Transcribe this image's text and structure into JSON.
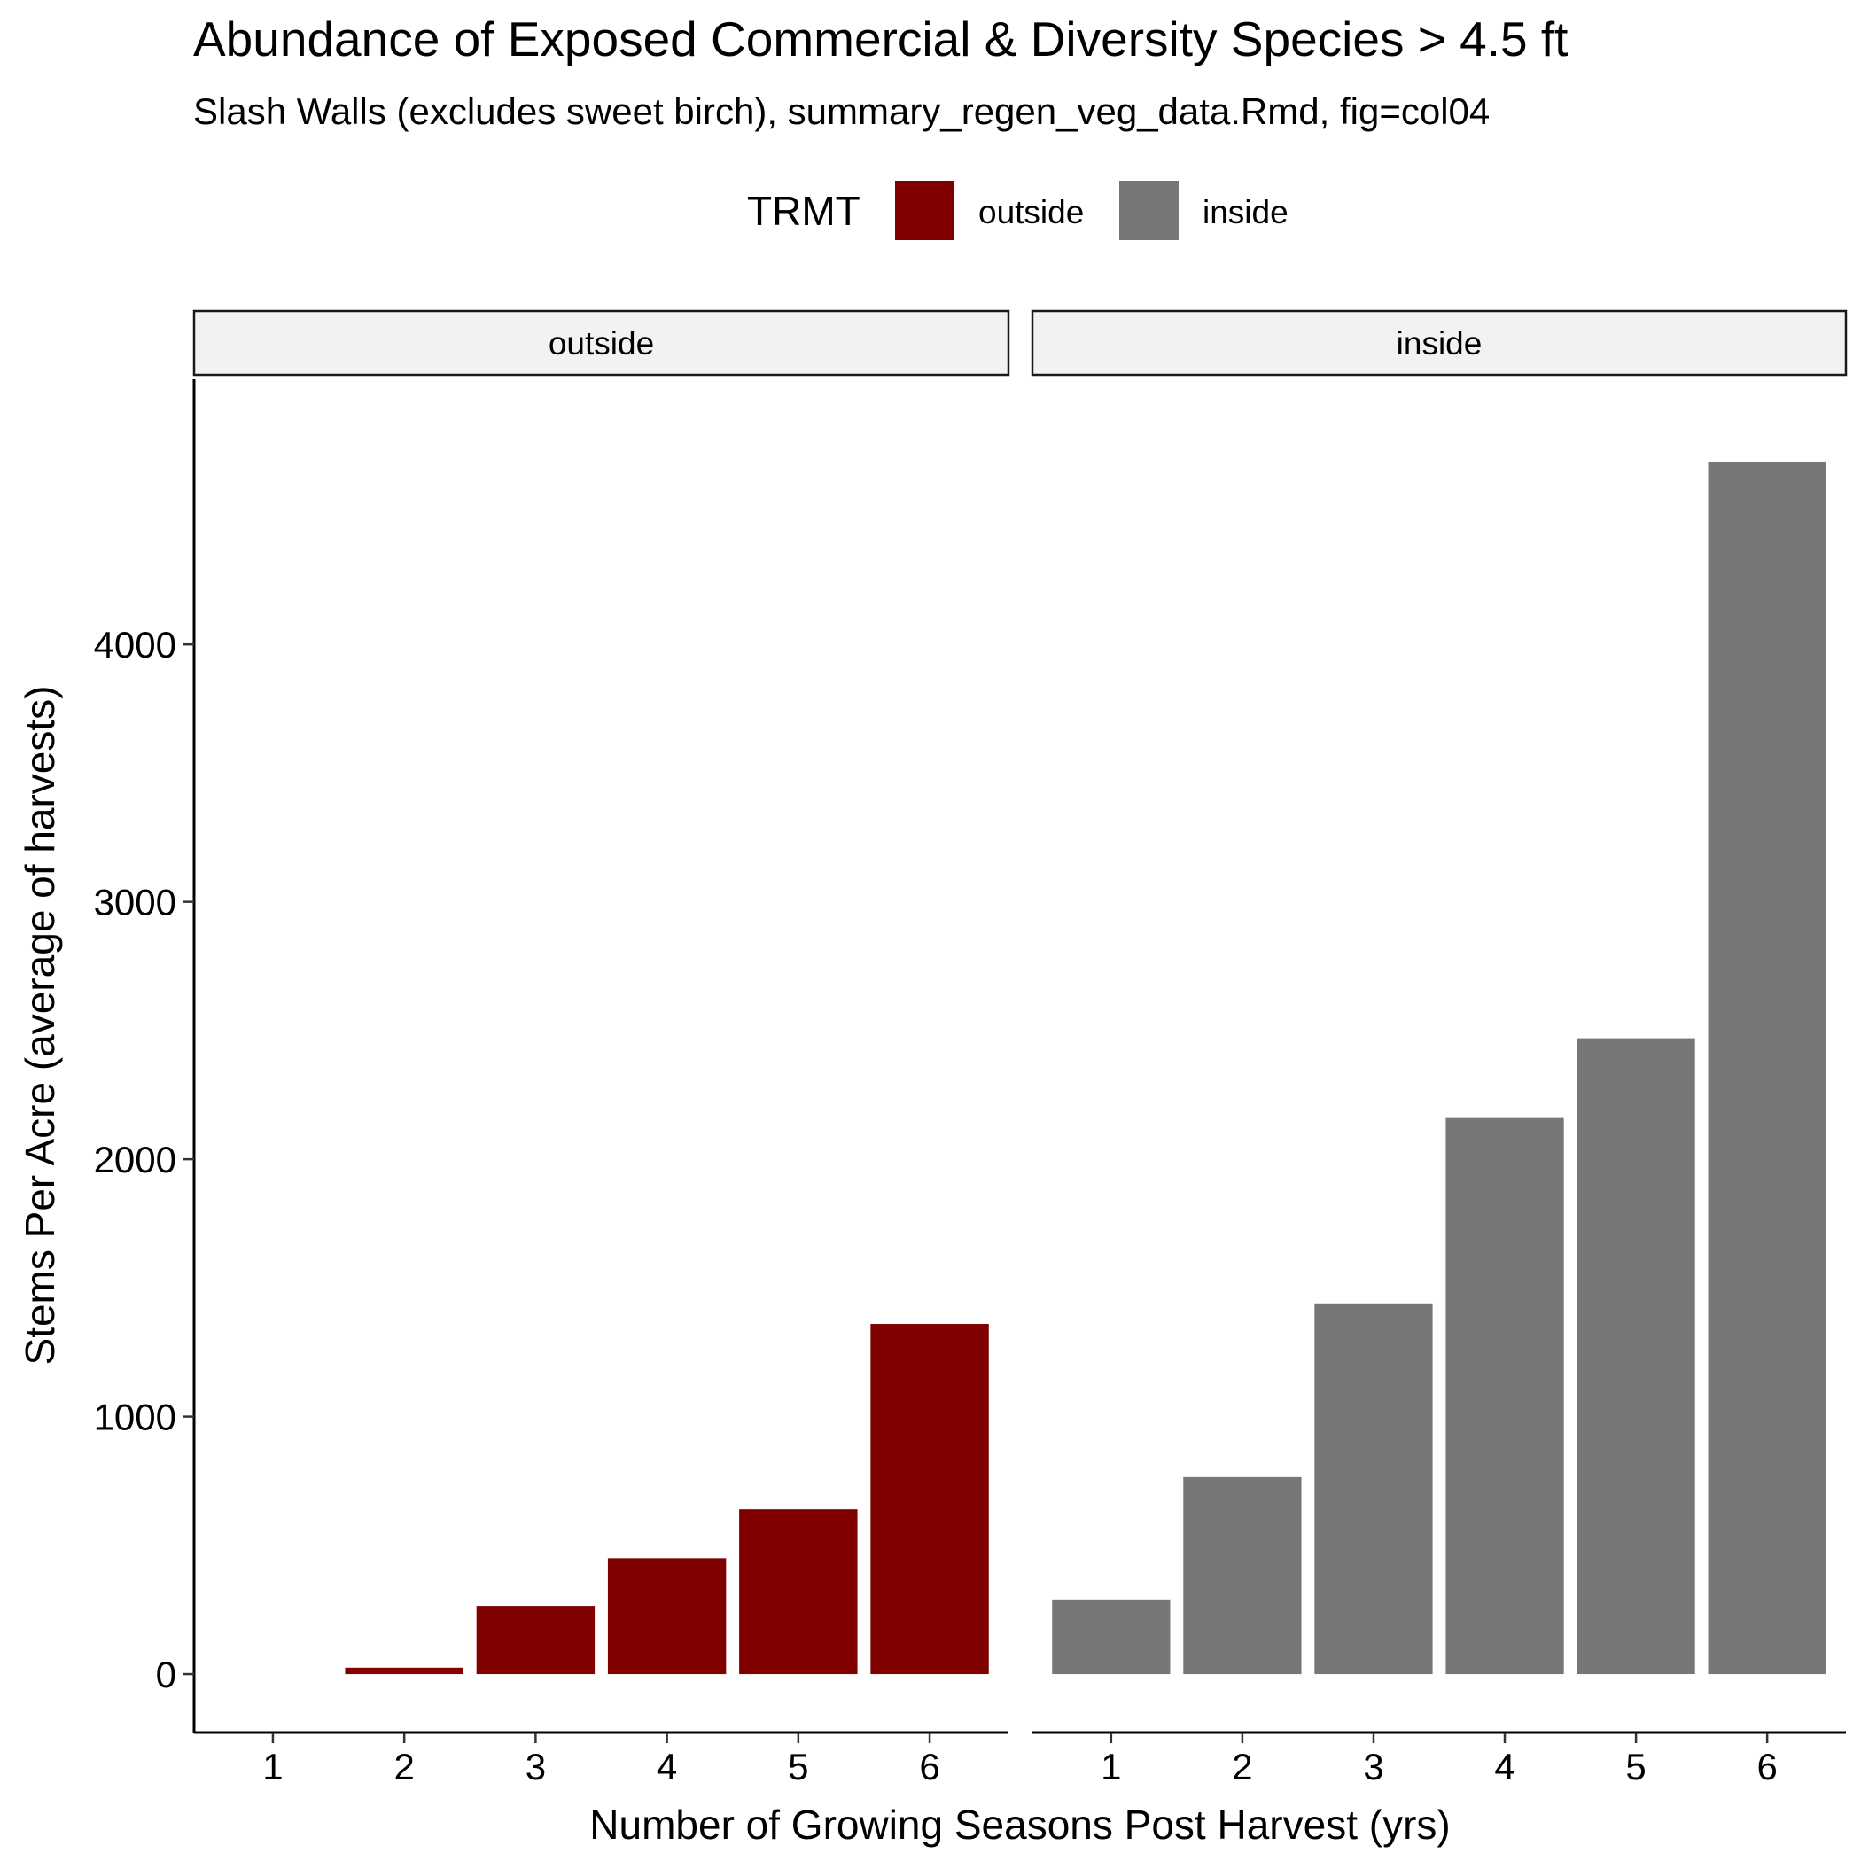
{
  "chart_data": {
    "type": "bar",
    "title": "Abundance of Exposed Commercial & Diversity Species > 4.5 ft",
    "subtitle": "Slash Walls (excludes sweet birch), summary_regen_veg_data.Rmd, fig=col04",
    "xlabel": "Number of Growing Seasons Post Harvest (yrs)",
    "ylabel": "Stems Per Acre (average of harvests)",
    "ylim": [
      -227,
      5030
    ],
    "yticks": [
      0,
      1000,
      2000,
      3000,
      4000
    ],
    "categories": [
      "1",
      "2",
      "3",
      "4",
      "5",
      "6"
    ],
    "legend": {
      "title": "TRMT",
      "placement": "top",
      "entries": [
        {
          "label": "outside",
          "color": "#800000"
        },
        {
          "label": "inside",
          "color": "#777777"
        }
      ]
    },
    "facets": [
      {
        "name": "outside",
        "color": "#800000",
        "values": [
          0,
          25,
          265,
          450,
          640,
          1360
        ]
      },
      {
        "name": "inside",
        "color": "#777777",
        "values": [
          290,
          765,
          1440,
          2160,
          2470,
          4710
        ]
      }
    ],
    "grid": false
  }
}
